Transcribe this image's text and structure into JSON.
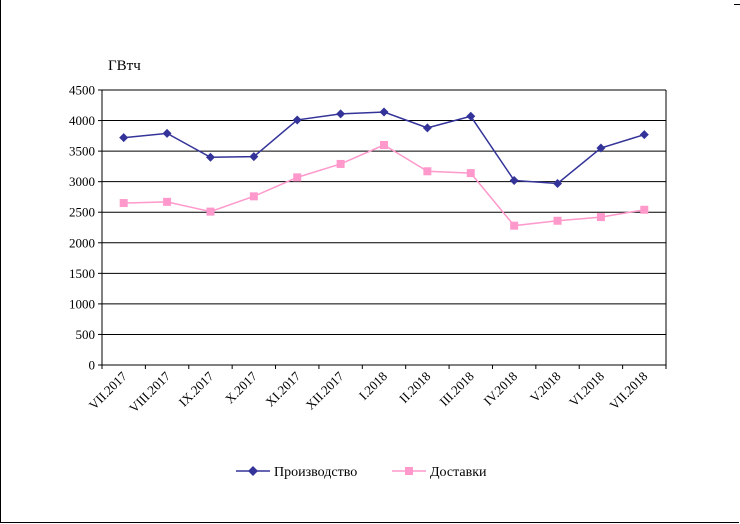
{
  "chart_data": {
    "type": "line",
    "ylabel": "ГВтч",
    "xlabel": "",
    "title": "",
    "ylim": [
      0,
      4500
    ],
    "yticks": [
      0,
      500,
      1000,
      1500,
      2000,
      2500,
      3000,
      3500,
      4000,
      4500
    ],
    "grid": true,
    "legend_position": "bottom",
    "categories": [
      "VII.2017",
      "VIII.2017",
      "IX.2017",
      "X.2017",
      "XI.2017",
      "XII.2017",
      "I.2018",
      "II.2018",
      "III.2018",
      "IV.2018",
      "V.2018",
      "VI.2018",
      "VII.2018"
    ],
    "series": [
      {
        "name": "Производство",
        "color": "#333399",
        "marker": "diamond",
        "values": [
          3720,
          3790,
          3400,
          3410,
          4010,
          4110,
          4140,
          3880,
          4070,
          3020,
          2970,
          3550,
          3770
        ]
      },
      {
        "name": "Доставки",
        "color": "#ff99cc",
        "marker": "square",
        "values": [
          2650,
          2670,
          2510,
          2760,
          3070,
          3290,
          3600,
          3170,
          3140,
          2280,
          2360,
          2420,
          2540
        ]
      }
    ]
  }
}
